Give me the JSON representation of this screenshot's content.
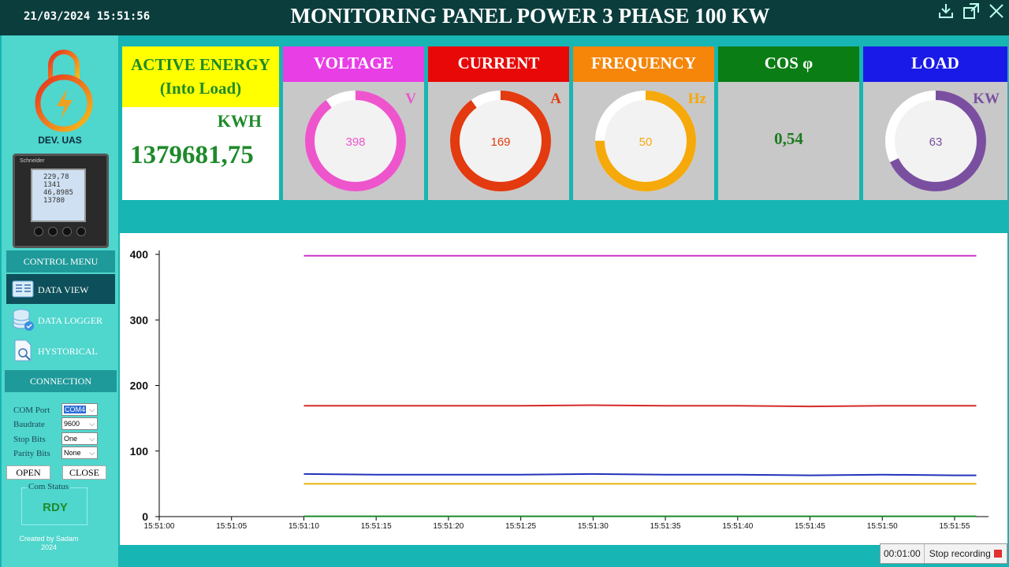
{
  "header": {
    "datetime": "21/03/2024 15:51:56",
    "title": "MONITORING PANEL POWER 3 PHASE 100 KW",
    "icons": [
      "download-icon",
      "fullscreen-icon",
      "close-icon"
    ]
  },
  "sidebar": {
    "brand": "DEV. UAS",
    "meter_lines": [
      "229,78",
      "1341",
      "46,8985",
      "13780"
    ],
    "control_menu_title": "CONTROL MENU",
    "menu_items": [
      {
        "label": "DATA VIEW",
        "icon": "data-view-icon"
      },
      {
        "label": "DATA LOGGER",
        "icon": "database-icon"
      },
      {
        "label": "HYSTORICAL",
        "icon": "historical-file-icon"
      }
    ],
    "connection_title": "CONNECTION",
    "connection": {
      "com_port_label": "COM Port",
      "com_port": "COM4",
      "baudrate_label": "Baudrate",
      "baudrate": "9600",
      "stop_bits_label": "Stop Bits",
      "stop_bits": "One",
      "parity_label": "Parity Bits",
      "parity": "None"
    },
    "open_label": "OPEN",
    "close_label": "CLOSE",
    "com_status_label": "Com  Status",
    "com_status_value": "RDY",
    "credit_line1": "Created by Sadam",
    "credit_line2": "2024"
  },
  "cards": {
    "energy": {
      "title_line1": "ACTIVE ENERGY",
      "title_line2": "(Into Load)",
      "unit": "KWH",
      "value": "1379681,75"
    },
    "voltage": {
      "title": "VOLTAGE",
      "unit": "V",
      "value": "398",
      "fraction": 0.9,
      "color": "#ee55cc",
      "head_color": "#e83ee6"
    },
    "current": {
      "title": "CURRENT",
      "unit": "A",
      "value": "169",
      "fraction": 0.9,
      "color": "#e33a10",
      "head_color": "#e80808"
    },
    "frequency": {
      "title": "FREQUENCY",
      "unit": "Hz",
      "value": "50",
      "fraction": 0.75,
      "color": "#f5a90a",
      "head_color": "#f5860a"
    },
    "cos": {
      "title": "COS φ",
      "value": "0,54",
      "head_color": "#0a7d15"
    },
    "load": {
      "title": "LOAD",
      "unit": "KW",
      "value": "63",
      "fraction": 0.68,
      "color": "#7a4fa0",
      "head_color": "#1a1ae8"
    }
  },
  "chart_data": {
    "type": "line",
    "x_ticks": [
      "15:51:00",
      "15:51:05",
      "15:51:10",
      "15:51:15",
      "15:51:20",
      "15:51:25",
      "15:51:30",
      "15:51:35",
      "15:51:40",
      "15:51:45",
      "15:51:50",
      "15:51:55"
    ],
    "x_range_seconds": [
      0,
      56.8
    ],
    "ylim": [
      0,
      400
    ],
    "y_ticks": [
      0,
      100,
      200,
      300,
      400
    ],
    "series": [
      {
        "color": "#cc33cc",
        "x": [
          10,
          15,
          20,
          25,
          30,
          35,
          40,
          45,
          50,
          55,
          56.5
        ],
        "values": [
          398,
          398,
          398,
          398,
          398,
          398,
          398,
          398,
          398,
          398,
          398
        ]
      },
      {
        "color": "#d62a2a",
        "x": [
          10,
          15,
          20,
          25,
          30,
          35,
          40,
          45,
          50,
          55,
          56.5
        ],
        "values": [
          169,
          169,
          169,
          169,
          170,
          169,
          169,
          168,
          169,
          169,
          169
        ]
      },
      {
        "color": "#2233bb",
        "x": [
          10,
          15,
          20,
          25,
          30,
          35,
          40,
          45,
          50,
          55,
          56.5
        ],
        "values": [
          65,
          64,
          64,
          64,
          65,
          64,
          64,
          63,
          64,
          63,
          63
        ]
      },
      {
        "color": "#e8b010",
        "x": [
          10,
          15,
          20,
          25,
          30,
          35,
          40,
          45,
          50,
          55,
          56.5
        ],
        "values": [
          50,
          50,
          50,
          50,
          50,
          50,
          50,
          50,
          50,
          50,
          50
        ]
      },
      {
        "color": "#1a8a2a",
        "x": [
          10,
          15,
          20,
          25,
          30,
          35,
          40,
          45,
          50,
          55,
          56.5
        ],
        "values": [
          0.54,
          0.54,
          0.54,
          0.54,
          0.54,
          0.54,
          0.54,
          0.54,
          0.54,
          0.54,
          0.54
        ]
      }
    ]
  },
  "recording": {
    "time": "00:01:00",
    "label": "Stop recording"
  }
}
